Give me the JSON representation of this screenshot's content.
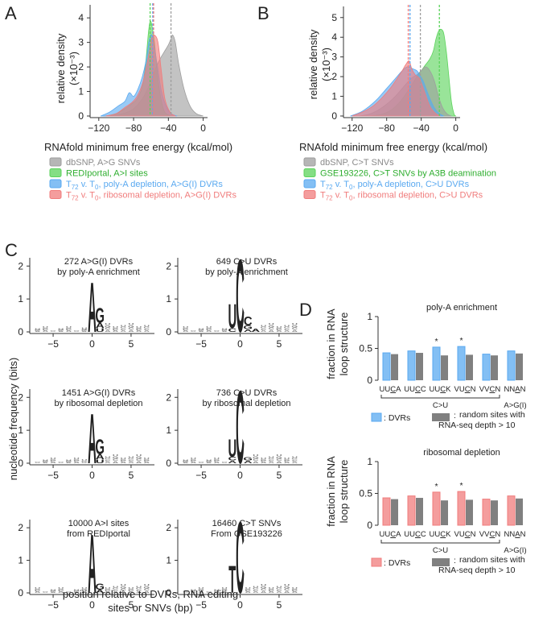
{
  "panels": {
    "A": "A",
    "B": "B",
    "C": "C",
    "D": "D"
  },
  "colors": {
    "dbsnp": "#9e9e9e",
    "green": "#5bd35b",
    "blue": "#5aa9f0",
    "red": "#f07c7c",
    "logo_A": "#3fbf3f",
    "logo_C": "#3b8fe0",
    "logo_G": "#f2a81d",
    "logo_T": "#e03131",
    "bar_random": "#808080"
  },
  "chart_data": [
    {
      "id": "A",
      "type": "area",
      "ylabel_main": "relative density",
      "ylabel_unit": "(×10⁻³)",
      "xlabel": "RNAfold minimum free energy (kcal/mol)",
      "xticks": [
        -120,
        -80,
        -40,
        0
      ],
      "yticks": [
        0,
        1,
        2,
        3,
        4
      ],
      "xlim": [
        -130,
        5
      ],
      "ylim": [
        0,
        4.4
      ],
      "series": [
        {
          "name": "dbSNP, A>G SNVs",
          "color": "#9e9e9e",
          "points": [
            [
              -115,
              0
            ],
            [
              -100,
              0.04
            ],
            [
              -90,
              0.12
            ],
            [
              -80,
              0.3
            ],
            [
              -70,
              0.7
            ],
            [
              -60,
              1.4
            ],
            [
              -55,
              1.9
            ],
            [
              -50,
              2.3
            ],
            [
              -45,
              2.6
            ],
            [
              -40,
              2.9
            ],
            [
              -37,
              3.15
            ],
            [
              -35,
              3.3
            ],
            [
              -32,
              3.0
            ],
            [
              -28,
              2.1
            ],
            [
              -22,
              1.1
            ],
            [
              -15,
              0.4
            ],
            [
              -8,
              0.1
            ],
            [
              0,
              0
            ]
          ]
        },
        {
          "name": "REDIportal, A>I sites",
          "color": "#5bd35b",
          "points": [
            [
              -112,
              0
            ],
            [
              -100,
              0.1
            ],
            [
              -90,
              0.3
            ],
            [
              -82,
              0.5
            ],
            [
              -76,
              0.7
            ],
            [
              -70,
              1.2
            ],
            [
              -66,
              2.2
            ],
            [
              -63,
              3.4
            ],
            [
              -61,
              3.85
            ],
            [
              -59,
              3.7
            ],
            [
              -56,
              3.0
            ],
            [
              -52,
              1.5
            ],
            [
              -48,
              0.6
            ],
            [
              -44,
              0.15
            ],
            [
              -38,
              0.02
            ],
            [
              -34,
              0
            ]
          ]
        },
        {
          "name": "T72 v. T0, poly-A depletion, A>G(I) DVRs",
          "color": "#5aa9f0",
          "points": [
            [
              -118,
              0
            ],
            [
              -108,
              0.15
            ],
            [
              -98,
              0.4
            ],
            [
              -90,
              0.6
            ],
            [
              -85,
              0.95
            ],
            [
              -80,
              0.8
            ],
            [
              -75,
              1.1
            ],
            [
              -70,
              1.6
            ],
            [
              -66,
              2.2
            ],
            [
              -62,
              3.1
            ],
            [
              -59,
              3.3
            ],
            [
              -56,
              2.8
            ],
            [
              -52,
              1.9
            ],
            [
              -48,
              1.0
            ],
            [
              -42,
              0.35
            ],
            [
              -36,
              0.08
            ],
            [
              -30,
              0
            ]
          ]
        },
        {
          "name": "T72 v. T0, ribosomal depletion, A>G(I) DVRs",
          "color": "#f07c7c",
          "points": [
            [
              -112,
              0
            ],
            [
              -100,
              0.1
            ],
            [
              -90,
              0.35
            ],
            [
              -82,
              0.55
            ],
            [
              -76,
              0.8
            ],
            [
              -70,
              1.3
            ],
            [
              -66,
              1.9
            ],
            [
              -62,
              2.6
            ],
            [
              -59,
              3.2
            ],
            [
              -56,
              3.3
            ],
            [
              -52,
              3.0
            ],
            [
              -48,
              1.8
            ],
            [
              -44,
              0.7
            ],
            [
              -38,
              0.15
            ],
            [
              -32,
              0
            ]
          ]
        }
      ],
      "vlines": [
        {
          "x": -37,
          "color": "#9e9e9e"
        },
        {
          "x": -61,
          "color": "#5bd35b"
        },
        {
          "x": -58,
          "color": "#5aa9f0"
        },
        {
          "x": -57,
          "color": "#f07c7c"
        }
      ],
      "legend": [
        {
          "label": "dbSNP, A>G SNVs",
          "color": "#9e9e9e"
        },
        {
          "label": "REDIportal, A>I sites",
          "color": "#5bd35b"
        },
        {
          "label": "T72 v. T0, poly-A depletion, A>G(I) DVRs",
          "color": "#5aa9f0"
        },
        {
          "label": "T72 v. T0, ribosomal depletion, A>G(I) DVRs",
          "color": "#f07c7c"
        }
      ]
    },
    {
      "id": "B",
      "type": "area",
      "ylabel_main": "relative density",
      "ylabel_unit": "(×10⁻³)",
      "xlabel": "RNAfold minimum free energy (kcal/mol)",
      "xticks": [
        -120,
        -80,
        -40,
        0
      ],
      "yticks": [
        0,
        1,
        2,
        3,
        4,
        5
      ],
      "xlim": [
        -130,
        5
      ],
      "ylim": [
        0,
        5.4
      ],
      "series": [
        {
          "name": "GSE193226, C>T SNVs by A3B deamination",
          "color": "#5bd35b",
          "points": [
            [
              -98,
              0
            ],
            [
              -85,
              0.1
            ],
            [
              -75,
              0.3
            ],
            [
              -65,
              0.7
            ],
            [
              -55,
              1.3
            ],
            [
              -45,
              2.0
            ],
            [
              -40,
              2.3
            ],
            [
              -35,
              2.6
            ],
            [
              -30,
              2.9
            ],
            [
              -26,
              3.3
            ],
            [
              -23,
              3.9
            ],
            [
              -20,
              4.3
            ],
            [
              -17,
              4.4
            ],
            [
              -14,
              4.2
            ],
            [
              -11,
              3.3
            ],
            [
              -8,
              2.0
            ],
            [
              -5,
              0.7
            ],
            [
              -2,
              0.1
            ],
            [
              0,
              0
            ]
          ]
        },
        {
          "name": "dbSNP, C>T SNVs",
          "color": "#9e9e9e",
          "points": [
            [
              -112,
              0
            ],
            [
              -100,
              0.1
            ],
            [
              -90,
              0.3
            ],
            [
              -80,
              0.6
            ],
            [
              -70,
              1.0
            ],
            [
              -60,
              1.5
            ],
            [
              -52,
              1.9
            ],
            [
              -45,
              2.1
            ],
            [
              -40,
              2.3
            ],
            [
              -35,
              2.5
            ],
            [
              -30,
              2.3
            ],
            [
              -25,
              1.8
            ],
            [
              -20,
              1.0
            ],
            [
              -15,
              0.4
            ],
            [
              -10,
              0.1
            ],
            [
              -5,
              0
            ]
          ]
        },
        {
          "name": "T72 v. T0, poly-A depletion, C>U DVRs",
          "color": "#5aa9f0",
          "points": [
            [
              -122,
              0
            ],
            [
              -110,
              0.2
            ],
            [
              -100,
              0.5
            ],
            [
              -90,
              0.9
            ],
            [
              -80,
              1.4
            ],
            [
              -70,
              1.9
            ],
            [
              -62,
              2.3
            ],
            [
              -56,
              2.5
            ],
            [
              -50,
              2.4
            ],
            [
              -45,
              2.3
            ],
            [
              -42,
              2.1
            ],
            [
              -38,
              1.8
            ],
            [
              -32,
              1.1
            ],
            [
              -26,
              0.5
            ],
            [
              -20,
              0.15
            ],
            [
              -14,
              0
            ]
          ]
        },
        {
          "name": "T72 v. T0, ribosomal depletion, C>U DVRs",
          "color": "#f07c7c",
          "points": [
            [
              -120,
              0
            ],
            [
              -108,
              0.2
            ],
            [
              -96,
              0.5
            ],
            [
              -86,
              0.9
            ],
            [
              -76,
              1.4
            ],
            [
              -68,
              1.9
            ],
            [
              -62,
              2.3
            ],
            [
              -58,
              2.6
            ],
            [
              -54,
              2.8
            ],
            [
              -51,
              2.4
            ],
            [
              -47,
              2.1
            ],
            [
              -42,
              1.9
            ],
            [
              -36,
              1.2
            ],
            [
              -30,
              0.5
            ],
            [
              -24,
              0.15
            ],
            [
              -18,
              0
            ]
          ]
        }
      ],
      "vlines": [
        {
          "x": -19,
          "color": "#5bd35b"
        },
        {
          "x": -41,
          "color": "#9e9e9e"
        },
        {
          "x": -53,
          "color": "#5aa9f0"
        },
        {
          "x": -55,
          "color": "#f07c7c"
        }
      ],
      "legend": [
        {
          "label": "dbSNP, C>T SNVs",
          "color": "#9e9e9e"
        },
        {
          "label": "GSE193226, C>T SNVs by A3B deamination",
          "color": "#5bd35b"
        },
        {
          "label": "T72 v. T0, poly-A depletion, C>U DVRs",
          "color": "#5aa9f0"
        },
        {
          "label": "T72 v. T0, ribosomal depletion, C>U DVRs",
          "color": "#f07c7c"
        }
      ]
    },
    {
      "id": "C",
      "type": "sequence-logo",
      "ylabel": "nucleotide frequency (bits)",
      "xlabel_line1": "position relative to DVRs, RNA editing",
      "xlabel_line2": "sites or SNVs (bp)",
      "xticks": [
        -5,
        0,
        5
      ],
      "yticks": [
        0,
        1,
        2
      ],
      "xlim": [
        -8,
        8
      ],
      "ylim": [
        0,
        2.3
      ],
      "logos": [
        {
          "title1": "272 A>G(I) DVRs",
          "title2": "by poly-A enrichment",
          "stacks": [
            {
              "pos": 0,
              "letters": [
                [
                  "A",
                  1.55
                ]
              ]
            },
            {
              "pos": 1,
              "letters": [
                [
                  "U",
                  0.12
                ],
                [
                  "A",
                  0.16
                ],
                [
                  "G",
                  0.45
                ]
              ]
            }
          ]
        },
        {
          "title1": "649 C>U DVRs",
          "title2": "by poly-A enrichment",
          "stacks": [
            {
              "pos": -1,
              "letters": [
                [
                  "C",
                  0.12
                ],
                [
                  "U",
                  0.75
                ]
              ]
            },
            {
              "pos": 0,
              "letters": [
                [
                  "C",
                  2.25
                ]
              ]
            },
            {
              "pos": 1,
              "letters": [
                [
                  "A",
                  0.08
                ],
                [
                  "G",
                  0.12
                ],
                [
                  "C",
                  0.28
                ]
              ]
            },
            {
              "pos": 2,
              "letters": [
                [
                  "A",
                  0.1
                ]
              ]
            }
          ]
        },
        {
          "title1": "1451 A>G(I) DVRs",
          "title2": "by ribosomal depletion",
          "stacks": [
            {
              "pos": 0,
              "letters": [
                [
                  "A",
                  1.55
                ]
              ]
            },
            {
              "pos": 1,
              "letters": [
                [
                  "U",
                  0.12
                ],
                [
                  "A",
                  0.16
                ],
                [
                  "G",
                  0.45
                ]
              ]
            }
          ]
        },
        {
          "title1": "736 C>U DVRs",
          "title2": "by ribosomal depletion",
          "stacks": [
            {
              "pos": -1,
              "letters": [
                [
                  "A",
                  0.08
                ],
                [
                  "C",
                  0.12
                ],
                [
                  "U",
                  0.55
                ]
              ]
            },
            {
              "pos": 0,
              "letters": [
                [
                  "C",
                  2.25
                ]
              ]
            },
            {
              "pos": 1,
              "letters": [
                [
                  "A",
                  0.08
                ],
                [
                  "G",
                  0.1
                ]
              ]
            }
          ]
        },
        {
          "title1": "10000 A>I sites",
          "title2": "from REDIportal",
          "stacks": [
            {
              "pos": 0,
              "letters": [
                [
                  "A",
                  1.85
                ]
              ]
            },
            {
              "pos": 1,
              "letters": [
                [
                  "A",
                  0.1
                ],
                [
                  "G",
                  0.2
                ]
              ]
            }
          ]
        },
        {
          "title1": "16460 C>T SNVs",
          "title2": "From GSE193226",
          "stacks": [
            {
              "pos": -1,
              "letters": [
                [
                  "T",
                  0.85
                ]
              ]
            },
            {
              "pos": 0,
              "letters": [
                [
                  "C",
                  2.25
                ]
              ]
            }
          ]
        }
      ]
    },
    {
      "id": "D",
      "type": "bar",
      "ylabel": "fraction in RNA loop structure",
      "yticks": [
        0,
        0.5,
        1
      ],
      "ylim": [
        0,
        1
      ],
      "categories": [
        "UUCA",
        "UUCC",
        "UUCK",
        "VUCN",
        "VVCN",
        "NNAN"
      ],
      "category_underline_index": [
        2,
        2,
        2,
        2,
        2,
        2
      ],
      "group_labels": [
        {
          "label": "C>U",
          "from": 0,
          "to": 4
        },
        {
          "label": "A>G(I)",
          "from": 5,
          "to": 5
        }
      ],
      "panels": [
        {
          "title": "poly-A enrichment",
          "dvr_color": "#5aa9f0",
          "series": [
            {
              "name": "DVRs",
              "values": [
                0.43,
                0.46,
                0.52,
                0.53,
                0.41,
                0.46
              ]
            },
            {
              "name": "random sites",
              "values": [
                0.41,
                0.43,
                0.39,
                0.4,
                0.39,
                0.42
              ]
            }
          ],
          "significant": [
            false,
            false,
            true,
            true,
            false,
            false
          ],
          "legend_dvr": ": DVRs",
          "legend_random1": "random sites with",
          "legend_random2": "RNA-seq depth > 10"
        },
        {
          "title": "ribosomal depletion",
          "dvr_color": "#f07c7c",
          "series": [
            {
              "name": "DVRs",
              "values": [
                0.43,
                0.46,
                0.52,
                0.53,
                0.41,
                0.46
              ]
            },
            {
              "name": "random sites",
              "values": [
                0.41,
                0.43,
                0.39,
                0.4,
                0.39,
                0.42
              ]
            }
          ],
          "significant": [
            false,
            false,
            true,
            true,
            false,
            false
          ],
          "legend_dvr": ": DVRs",
          "legend_random1": "random sites with",
          "legend_random2": "RNA-seq depth > 10"
        }
      ]
    }
  ]
}
